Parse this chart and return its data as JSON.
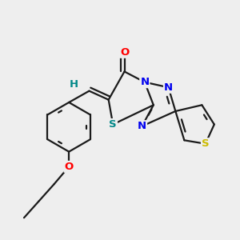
{
  "bg_color": "#eeeeee",
  "bond_color": "#1a1a1a",
  "bond_width": 1.6,
  "atom_colors": {
    "O": "#ff0000",
    "N": "#0000ee",
    "S_yellow": "#ccbb00",
    "S_teal": "#008888",
    "H": "#008888"
  },
  "font_size": 9.5,
  "fig_size": [
    3.0,
    3.0
  ],
  "dpi": 100,
  "xlim": [
    0.2,
    2.9
  ],
  "ylim": [
    0.3,
    2.8
  ]
}
